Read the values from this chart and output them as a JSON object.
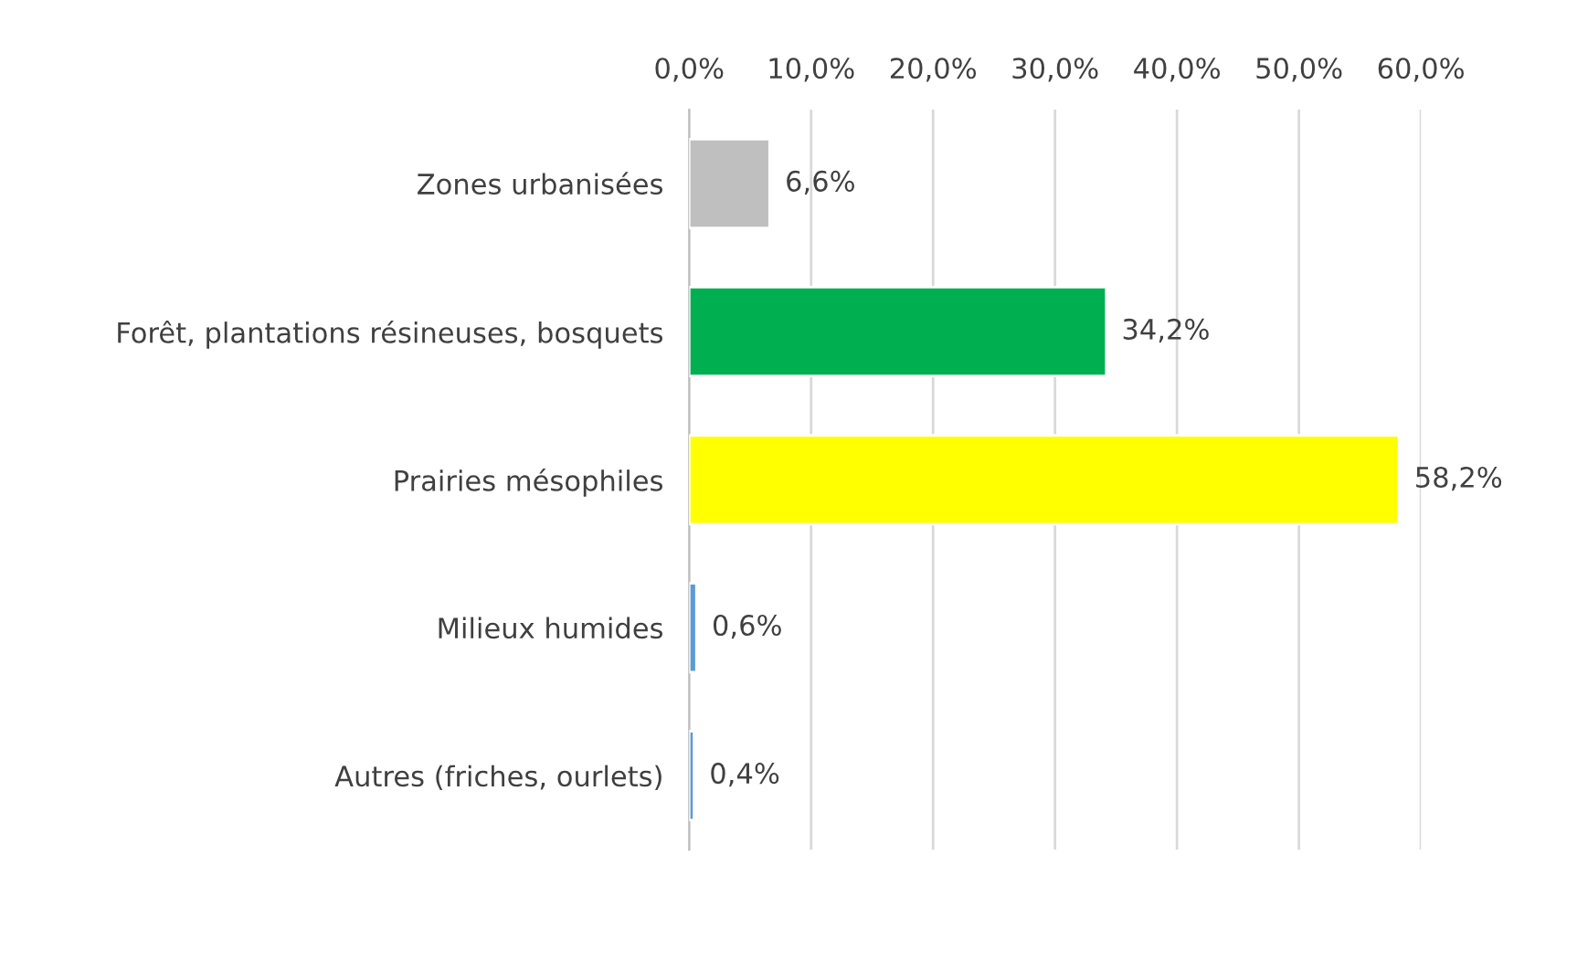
{
  "chart_data": {
    "type": "bar",
    "orientation": "horizontal",
    "categories": [
      "Zones urbanisées",
      "Forêt, plantations résineuses, bosquets",
      "Prairies mésophiles",
      "Milieux humides",
      "Autres (friches, ourlets)"
    ],
    "values": [
      6.6,
      34.2,
      58.2,
      0.6,
      0.4
    ],
    "colors": [
      "#bfbfbf",
      "#00b050",
      "#ffff00",
      "#5b9bd5",
      "#5b9bd5"
    ],
    "value_labels": [
      "6,6%",
      "34,2%",
      "58,2%",
      "0,6%",
      "0,4%"
    ],
    "xlim": [
      0,
      60
    ],
    "xticks": [
      {
        "value": 0,
        "label": "0,0%"
      },
      {
        "value": 10,
        "label": "10,0%"
      },
      {
        "value": 20,
        "label": "20,0%"
      },
      {
        "value": 30,
        "label": "30,0%"
      },
      {
        "value": 40,
        "label": "40,0%"
      },
      {
        "value": 50,
        "label": "50,0%"
      },
      {
        "value": 60,
        "label": "60,0%"
      }
    ],
    "grid": "x"
  }
}
